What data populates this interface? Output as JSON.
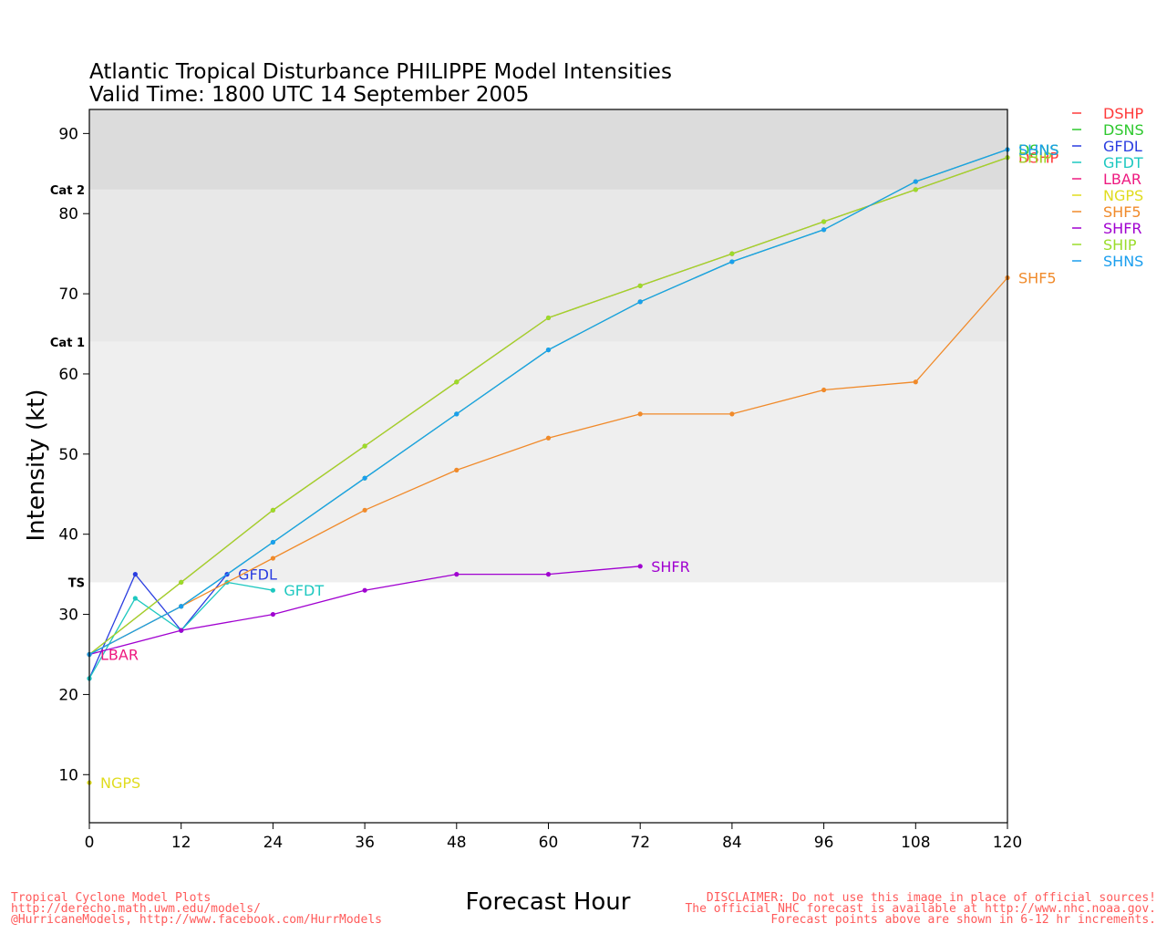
{
  "chart_data": {
    "type": "line",
    "title": "Atlantic Tropical Disturbance PHILIPPE Model Intensities",
    "subtitle": "Valid Time: 1800 UTC 14 September 2005",
    "xlabel": "Forecast Hour",
    "ylabel": "Intensity (kt)",
    "xlim": [
      0,
      120
    ],
    "ylim": [
      4,
      93
    ],
    "x_ticks": [
      0,
      12,
      24,
      36,
      48,
      60,
      72,
      84,
      96,
      108,
      120
    ],
    "y_ticks": [
      10,
      20,
      30,
      40,
      50,
      60,
      70,
      80,
      90
    ],
    "bands": [
      {
        "label": "TS",
        "from": 34,
        "to": 64,
        "color": "#efefef"
      },
      {
        "label": "Cat 1",
        "from": 64,
        "to": 83,
        "color": "#e8e8e8"
      },
      {
        "label": "Cat 2",
        "from": 83,
        "to": 93,
        "color": "#dcdcdc"
      }
    ],
    "legend_position": "right",
    "series": [
      {
        "name": "DSHP",
        "color": "#ff3a3a",
        "label": "DSHP",
        "x": [
          0,
          12,
          24,
          36,
          48,
          60,
          72,
          84,
          96,
          108,
          120
        ],
        "y": [
          25,
          34,
          43,
          51,
          59,
          67,
          71,
          75,
          79,
          83,
          87
        ]
      },
      {
        "name": "DSNS",
        "color": "#2ec82e",
        "label": "DSNS",
        "x": [
          0,
          12,
          24,
          36,
          48,
          60,
          72,
          84,
          96,
          108,
          120
        ],
        "y": [
          25,
          31,
          39,
          47,
          55,
          63,
          69,
          74,
          78,
          84,
          88
        ]
      },
      {
        "name": "GFDL",
        "color": "#2a3de0",
        "label": "GFDL",
        "x": [
          0,
          6,
          12,
          18
        ],
        "y": [
          22,
          35,
          28,
          35
        ]
      },
      {
        "name": "GFDT",
        "color": "#1ec8c0",
        "label": "GFDT",
        "x": [
          0,
          6,
          12,
          18,
          24
        ],
        "y": [
          22,
          32,
          28,
          34,
          33
        ]
      },
      {
        "name": "LBAR",
        "color": "#ee1a80",
        "label": "LBAR",
        "x": [
          0
        ],
        "y": [
          25
        ]
      },
      {
        "name": "NGPS",
        "color": "#e0dc1e",
        "label": "NGPS",
        "x": [
          0
        ],
        "y": [
          9
        ]
      },
      {
        "name": "SHF5",
        "color": "#f08a2a",
        "label": "SHF5",
        "x": [
          0,
          12,
          24,
          36,
          48,
          60,
          72,
          84,
          96,
          108,
          120
        ],
        "y": [
          25,
          31,
          37,
          43,
          48,
          52,
          55,
          55,
          58,
          59,
          72
        ]
      },
      {
        "name": "SHFR",
        "color": "#a000d0",
        "label": "SHFR",
        "x": [
          0,
          12,
          24,
          36,
          48,
          60,
          72
        ],
        "y": [
          25,
          28,
          30,
          33,
          35,
          35,
          36
        ]
      },
      {
        "name": "SHIP",
        "color": "#9adc2a",
        "label": "SHIP",
        "x": [
          0,
          12,
          24,
          36,
          48,
          60,
          72,
          84,
          96,
          108,
          120
        ],
        "y": [
          25,
          34,
          43,
          51,
          59,
          67,
          71,
          75,
          79,
          83,
          87
        ]
      },
      {
        "name": "SHNS",
        "color": "#1a9eee",
        "label": "SHNS",
        "x": [
          0,
          12,
          24,
          36,
          48,
          60,
          72,
          84,
          96,
          108,
          120
        ],
        "y": [
          25,
          31,
          39,
          47,
          55,
          63,
          69,
          74,
          78,
          84,
          88
        ]
      }
    ]
  },
  "footer": {
    "left": [
      "Tropical Cyclone Model Plots",
      "http://derecho.math.uwm.edu/models/",
      "@HurricaneModels, http://www.facebook.com/HurrModels"
    ],
    "right": [
      "DISCLAIMER: Do not use this image in place of official sources!",
      "The official NHC forecast is available at http://www.nhc.noaa.gov.",
      "Forecast points above are shown in 6-12 hr increments."
    ]
  }
}
